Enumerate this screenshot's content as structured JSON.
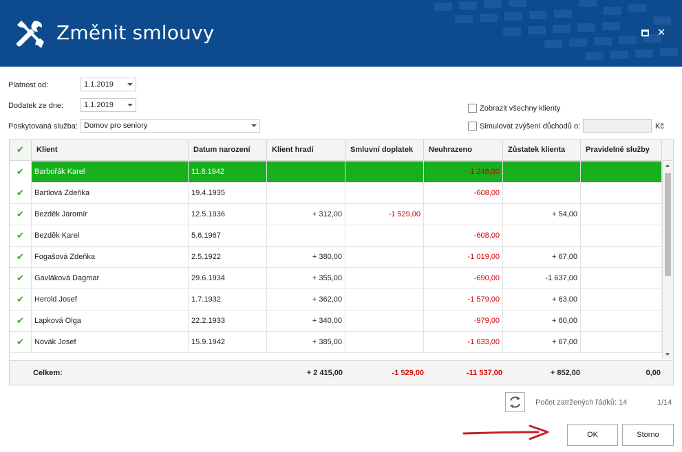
{
  "window": {
    "title": "Změnit smlouvy"
  },
  "form": {
    "platnost_label": "Platnost od:",
    "platnost_value": "1.1.2019",
    "dodatek_label": "Dodatek ze dne:",
    "dodatek_value": "1.1.2019",
    "sluzba_label": "Poskytovaná služba:",
    "sluzba_value": "Domov pro seniory",
    "zobrazit_label": "Zobrazit všechny klienty",
    "simulovat_label": "Simulovat zvýšení důchodů o:",
    "simulovat_value": "",
    "currency": "Kč"
  },
  "grid": {
    "headers": [
      "✔",
      "Klient",
      "Datum narození",
      "Klient hradí",
      "Smluvní doplatek",
      "Neuhrazeno",
      "Zůstatek klienta",
      "Pravidelné služby"
    ],
    "rows": [
      {
        "klient": "Barbořák Karel",
        "datum": "11.8.1942",
        "hradi": "",
        "doplatek": "",
        "neuhrazeno": "-1 248,00",
        "zustatek": "",
        "sluzby": ""
      },
      {
        "klient": "Bartlová Zdeňka",
        "datum": "19.4.1935",
        "hradi": "",
        "doplatek": "",
        "neuhrazeno": "-608,00",
        "zustatek": "",
        "sluzby": ""
      },
      {
        "klient": "Bezděk Jaromír",
        "datum": "12.5.1936",
        "hradi": "+ 312,00",
        "doplatek": "-1 529,00",
        "neuhrazeno": "",
        "zustatek": "+ 54,00",
        "sluzby": ""
      },
      {
        "klient": "Bezděk Karel",
        "datum": "5.6.1967",
        "hradi": "",
        "doplatek": "",
        "neuhrazeno": "-608,00",
        "zustatek": "",
        "sluzby": ""
      },
      {
        "klient": "Fogašová Zdeňka",
        "datum": "2.5.1922",
        "hradi": "+ 380,00",
        "doplatek": "",
        "neuhrazeno": "-1 019,00",
        "zustatek": "+ 67,00",
        "sluzby": ""
      },
      {
        "klient": "Gavláková Dagmar",
        "datum": "29.6.1934",
        "hradi": "+ 355,00",
        "doplatek": "",
        "neuhrazeno": "-690,00",
        "zustatek": "-1 637,00",
        "sluzby": ""
      },
      {
        "klient": "Herold Josef",
        "datum": "1.7.1932",
        "hradi": "+ 362,00",
        "doplatek": "",
        "neuhrazeno": "-1 579,00",
        "zustatek": "+ 63,00",
        "sluzby": ""
      },
      {
        "klient": "Lapková Olga",
        "datum": "22.2.1933",
        "hradi": "+ 340,00",
        "doplatek": "",
        "neuhrazeno": "-979,00",
        "zustatek": "+ 60,00",
        "sluzby": ""
      },
      {
        "klient": "Novák Josef",
        "datum": "15.9.1942",
        "hradi": "+ 385,00",
        "doplatek": "",
        "neuhrazeno": "-1 633,00",
        "zustatek": "+ 67,00",
        "sluzby": ""
      }
    ],
    "footer": {
      "label": "Celkem:",
      "hradi": "+ 2 415,00",
      "doplatek": "-1 529,00",
      "neuhrazeno": "-11 537,00",
      "zustatek": "+ 852,00",
      "sluzby": "0,00"
    }
  },
  "status": {
    "rows_label": "Počet zatržených řádků: 14",
    "page": "1/14"
  },
  "buttons": {
    "ok": "OK",
    "storno": "Storno"
  },
  "colors": {
    "header_bg": "#0d4b8e",
    "selected_row": "#19b01e",
    "negative": "#d40000",
    "check": "#3ca02c"
  },
  "icons": {
    "title": "tools-icon",
    "refresh": "refresh-icon",
    "arrow": "red-arrow-icon"
  }
}
